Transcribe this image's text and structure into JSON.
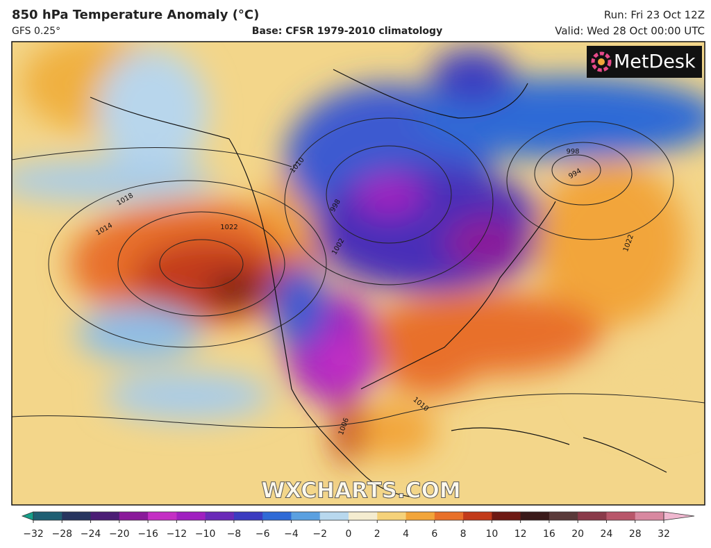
{
  "header": {
    "title": "850 hPa Temperature Anomaly (°C)",
    "model": "GFS 0.25°",
    "base": "Base: CFSR 1979-2010 climatology",
    "run": "Run: Fri 23 Oct 12Z",
    "valid": "Valid: Wed 28 Oct 00:00 UTC"
  },
  "map": {
    "logo": "MetDesk",
    "watermark": "WXCHARTS.COM",
    "isobar_labels": [
      "1018",
      "1014",
      "1022",
      "998",
      "994",
      "1022",
      "1002",
      "998",
      "1010",
      "1010",
      "1006"
    ]
  },
  "colorbar": {
    "ticks": [
      {
        "value": -32,
        "label": "−32"
      },
      {
        "value": -28,
        "label": "−28"
      },
      {
        "value": -24,
        "label": "−24"
      },
      {
        "value": -20,
        "label": "−20"
      },
      {
        "value": -16,
        "label": "−16"
      },
      {
        "value": -12,
        "label": "−12"
      },
      {
        "value": -10,
        "label": "−10"
      },
      {
        "value": -8,
        "label": "−8"
      },
      {
        "value": -6,
        "label": "−6"
      },
      {
        "value": -4,
        "label": "−4"
      },
      {
        "value": -2,
        "label": "−2"
      },
      0,
      2,
      4,
      6,
      8,
      10,
      12,
      16,
      20,
      24,
      28,
      32
    ],
    "colors": [
      "#16a08a",
      "#1f5f73",
      "#27355f",
      "#4b1d75",
      "#8a1a9a",
      "#c42fc4",
      "#a020c0",
      "#6a2bb8",
      "#3c3cc0",
      "#2f6ad6",
      "#5aa0e0",
      "#b8d8ee",
      "#f4ecd0",
      "#f5d27a",
      "#f2a53a",
      "#e8702a",
      "#c23a1a",
      "#6e1a14",
      "#3a1a1a",
      "#5a3a3a",
      "#8a3a4a",
      "#b8566a",
      "#d888a0",
      "#f0b8d0"
    ]
  }
}
